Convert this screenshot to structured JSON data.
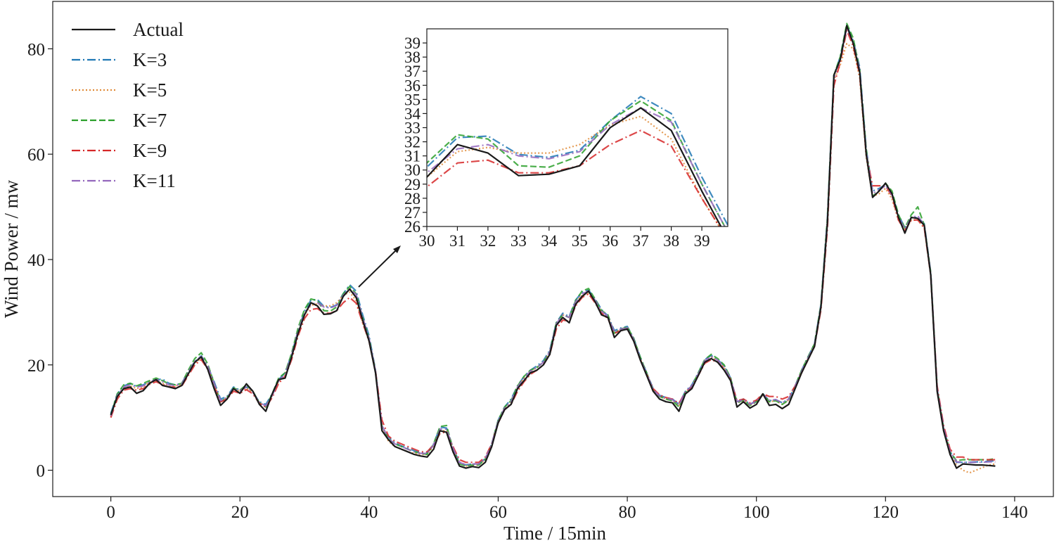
{
  "chart_data": {
    "type": "line",
    "title": "",
    "xlabel": "Time / 15min",
    "ylabel": "Wind Power / mw",
    "xlim": [
      -9,
      146
    ],
    "ylim": [
      -5,
      89
    ],
    "xticks": [
      0,
      20,
      40,
      60,
      80,
      100,
      120,
      140
    ],
    "yticks": [
      0,
      20,
      40,
      60,
      80
    ],
    "grid": false,
    "legend_position": "top-left",
    "colors": {
      "axis": "#1a1a1a",
      "arrow": "#1a1a1a"
    },
    "series": [
      {
        "name": "Actual",
        "color": "#1a1a1a",
        "dash": "solid",
        "values": [
          10.5,
          14,
          15.5,
          15.8,
          14.6,
          15.1,
          16.5,
          17.2,
          16.1,
          15.8,
          15.5,
          16.1,
          18.3,
          20.5,
          21.5,
          19.2,
          15.5,
          12.3,
          13.5,
          15.5,
          14.6,
          16.4,
          15,
          12.5,
          11.2,
          14.5,
          17.2,
          17.5,
          21.5,
          26,
          29.5,
          31.8,
          31.2,
          29.6,
          29.7,
          30.3,
          33,
          34.4,
          32.8,
          28.5,
          24.5,
          18.5,
          7.5,
          5.8,
          4.5,
          4,
          3.5,
          3,
          2.7,
          2.5,
          4,
          7.5,
          7.2,
          3.5,
          0.8,
          0.4,
          0.7,
          0.5,
          1.5,
          4.5,
          9,
          11.5,
          12.5,
          15.5,
          17,
          18.5,
          19,
          20,
          22,
          27.5,
          29,
          28,
          31.5,
          33,
          34,
          32,
          29.5,
          29,
          25.2,
          26.5,
          26.8,
          24.5,
          21,
          18,
          15,
          13.5,
          13,
          12.8,
          11.2,
          14.5,
          15.5,
          18,
          20.5,
          21.2,
          20.5,
          19,
          17,
          12,
          13,
          11.8,
          12.5,
          14.5,
          12.3,
          12.5,
          11.7,
          12.5,
          15.5,
          18.5,
          21,
          23.5,
          31,
          47,
          75,
          78,
          84.4,
          81,
          75.5,
          60,
          51.8,
          53,
          54.5,
          52.5,
          48,
          45,
          48,
          47.8,
          46.5,
          37,
          15,
          7.5,
          3,
          0.4,
          1.2,
          1.1,
          1,
          1,
          0.9,
          0.8
        ]
      },
      {
        "name": "K=3",
        "color": "#1f77b4",
        "dash": "dashdot",
        "values": [
          10.8,
          14.5,
          16,
          16.5,
          15.9,
          16.2,
          16.8,
          17.2,
          17.3,
          16.5,
          16.2,
          16.5,
          18.8,
          20.6,
          21.7,
          19.8,
          16.8,
          13.5,
          14,
          15.8,
          15.2,
          15.8,
          14.8,
          13,
          12.5,
          14.5,
          17.2,
          18.5,
          22,
          26.5,
          30.2,
          32.3,
          32.4,
          31.1,
          30.9,
          31.4,
          33.5,
          35.2,
          34,
          29.5,
          25.5,
          19,
          8.2,
          6.3,
          5.2,
          4.6,
          4.2,
          3.7,
          3.3,
          3.3,
          5,
          8.2,
          8,
          4.2,
          1.5,
          1,
          1.2,
          1.2,
          2.2,
          5,
          9.5,
          12,
          13.5,
          16,
          17.8,
          19,
          19.8,
          20.8,
          22.8,
          28,
          29.8,
          29.2,
          32.3,
          33.8,
          34.2,
          32.5,
          30.5,
          29.3,
          26.5,
          27,
          27.3,
          25,
          21.5,
          18.5,
          15.5,
          14.2,
          13.8,
          13.5,
          12.5,
          15,
          16.2,
          18.5,
          21,
          21.8,
          21,
          19.8,
          17.5,
          13,
          13.5,
          12.5,
          13.2,
          14.5,
          13.2,
          13.4,
          12.8,
          13.5,
          16,
          19,
          21.5,
          24,
          31.5,
          48,
          75,
          78.5,
          84.5,
          81.5,
          76.5,
          61,
          53,
          53.5,
          54.2,
          52.5,
          48.5,
          46,
          48,
          48,
          46.8,
          37.5,
          15.5,
          8,
          3.5,
          1.5,
          1.5,
          1.5,
          1.6,
          1.6,
          1.7,
          1.8
        ]
      },
      {
        "name": "K=5",
        "color": "#e08c3a",
        "dash": "dotted",
        "values": [
          10.2,
          14,
          15.5,
          16,
          15.5,
          15.8,
          16.8,
          17,
          16.5,
          16,
          16,
          16.3,
          18.5,
          20.4,
          21.2,
          19.5,
          16.2,
          13,
          13.8,
          15.4,
          15,
          15.6,
          14.8,
          12.8,
          12,
          14.2,
          16.8,
          18,
          21.5,
          26,
          29.5,
          31.3,
          31.6,
          31.2,
          31.2,
          31.8,
          33.2,
          33.8,
          32.2,
          28,
          24.5,
          18.5,
          8.5,
          5.5,
          4.5,
          4,
          3.5,
          3.2,
          3,
          3,
          4.6,
          7.5,
          7.5,
          4,
          1.2,
          0.8,
          1,
          1,
          2,
          4.8,
          9.2,
          11.8,
          13,
          15.8,
          17.5,
          18.8,
          19.5,
          20.5,
          22.5,
          27.5,
          29.5,
          29,
          32,
          33.2,
          33.5,
          32,
          30,
          29,
          26,
          26.8,
          27,
          24.8,
          21.2,
          18.2,
          15.2,
          14,
          13.5,
          13.2,
          12.2,
          14.8,
          16,
          18.2,
          20.8,
          21.5,
          20.8,
          19.5,
          17.2,
          12.8,
          13.2,
          12.3,
          13,
          14.3,
          13,
          13.2,
          12.5,
          13.3,
          15.8,
          18.8,
          21.2,
          23.8,
          31,
          47.5,
          74,
          77,
          81,
          80,
          74.5,
          59.5,
          52,
          52.5,
          53.5,
          51.5,
          47.5,
          45.5,
          47.5,
          47.5,
          46,
          37,
          15,
          7.5,
          3,
          1,
          0,
          -0.5,
          0,
          0.5,
          1,
          1.2
        ]
      },
      {
        "name": "K=7",
        "color": "#2ca02c",
        "dash": "dashed",
        "values": [
          10.5,
          14.5,
          16.2,
          16.5,
          16,
          16.5,
          17,
          17.5,
          17,
          16.4,
          16.2,
          16.5,
          19,
          21.2,
          22.3,
          20.2,
          16.5,
          13,
          13.8,
          15.6,
          15.2,
          16.2,
          15,
          12.8,
          12,
          14.5,
          17.5,
          18.5,
          22.2,
          27,
          30.5,
          32.5,
          32.2,
          30.3,
          30.2,
          31,
          33.5,
          34.9,
          33.5,
          29,
          25,
          18.8,
          8,
          6,
          5,
          4.5,
          4,
          3.5,
          3.2,
          3,
          5,
          8.3,
          8.5,
          4,
          1.2,
          0.8,
          1,
          1,
          2,
          5,
          9.5,
          12,
          13.2,
          16,
          17.8,
          19,
          19.5,
          20.5,
          22.5,
          28,
          29.5,
          29,
          32.2,
          34,
          34.5,
          32.5,
          30.3,
          29.5,
          26,
          26.8,
          27.2,
          25,
          21.5,
          18.5,
          15.2,
          14,
          13.5,
          13.2,
          12,
          14.8,
          16,
          18.5,
          21,
          22,
          21.2,
          20,
          17.5,
          12.8,
          13.3,
          12.3,
          13,
          14.5,
          13,
          13.2,
          12.5,
          13.3,
          16,
          19,
          21.5,
          24,
          31.5,
          48,
          75,
          78.5,
          84.8,
          82,
          76,
          61,
          52,
          53,
          54.5,
          53,
          48.5,
          46,
          48.5,
          50,
          46.5,
          37.5,
          15.5,
          8,
          3.5,
          1.8,
          2,
          2,
          2,
          2,
          2,
          2.2
        ]
      },
      {
        "name": "K=9",
        "color": "#d62728",
        "dash": "dashdot",
        "values": [
          10,
          13.5,
          15.2,
          15.5,
          15.2,
          15.5,
          16.3,
          16.8,
          16.3,
          15.8,
          15.8,
          16,
          18,
          20,
          21,
          19.2,
          16,
          13,
          13.5,
          15,
          14.6,
          15.3,
          14.5,
          12.7,
          12,
          13.8,
          16.5,
          17.8,
          21,
          25.5,
          28.8,
          30.5,
          30.7,
          29.8,
          29.8,
          30.3,
          31.8,
          32.8,
          31.7,
          28,
          24.5,
          18.8,
          9.5,
          6.5,
          5.5,
          5,
          4.5,
          4,
          3.5,
          3.5,
          4.8,
          7,
          7.3,
          4.5,
          2,
          1.5,
          1.5,
          1.5,
          2.5,
          5,
          9,
          11.5,
          12.5,
          15,
          16.8,
          18.2,
          19,
          20,
          22,
          26.8,
          28.5,
          28.3,
          31.2,
          32.8,
          33.5,
          31.8,
          29.8,
          28.8,
          26,
          26.5,
          26.8,
          24.5,
          21,
          18.2,
          15.5,
          14.3,
          13.8,
          13.5,
          12.7,
          14.8,
          15.8,
          18,
          20.3,
          21,
          20.5,
          19.2,
          17.2,
          13.2,
          13.5,
          12.8,
          13.3,
          14.5,
          14,
          14,
          13.5,
          14,
          16,
          18.5,
          21,
          23.5,
          30.5,
          46,
          73,
          77.5,
          83.5,
          80.5,
          75,
          60,
          54,
          54,
          54,
          52,
          47.5,
          45.5,
          47.5,
          47.5,
          46,
          37,
          16,
          8.5,
          4,
          2.5,
          2.5,
          2,
          2,
          2,
          2,
          2
        ]
      },
      {
        "name": "K=11",
        "color": "#9467bd",
        "dash": "dashdot",
        "values": [
          10.3,
          14.2,
          15.8,
          16.2,
          15.8,
          16,
          16.7,
          17.2,
          16.8,
          16.2,
          16.1,
          16.4,
          18.6,
          20.7,
          21.6,
          19.8,
          16.5,
          13.2,
          13.8,
          15.5,
          15.1,
          15.8,
          14.8,
          12.9,
          12.2,
          14.2,
          17,
          18.2,
          21.8,
          26.5,
          29.8,
          31.5,
          31.8,
          31,
          30.8,
          31.3,
          33.2,
          34.4,
          33.4,
          29,
          25,
          18.8,
          8.5,
          6,
          5,
          4.5,
          4,
          3.5,
          3.2,
          3.2,
          4.8,
          7.8,
          7.8,
          4.2,
          1.5,
          1,
          1.2,
          1.2,
          2.2,
          5,
          9.3,
          11.8,
          13,
          15.8,
          17.5,
          18.8,
          19.5,
          20.5,
          22.5,
          27.8,
          29.5,
          29,
          32,
          33.5,
          34,
          32.3,
          30.2,
          29.2,
          26.2,
          26.8,
          27,
          24.8,
          21.2,
          18.3,
          15.3,
          14.1,
          13.7,
          13.4,
          12.4,
          14.9,
          16,
          18.3,
          20.8,
          21.6,
          20.9,
          19.6,
          17.3,
          13,
          13.4,
          12.5,
          13.1,
          14.4,
          13.3,
          13.4,
          12.8,
          13.5,
          15.9,
          18.8,
          21.3,
          23.8,
          31.2,
          47.5,
          74.5,
          78,
          84,
          81.2,
          76,
          60.5,
          52.5,
          53.2,
          54,
          52.3,
          48,
          45.8,
          48,
          48.3,
          46.5,
          37.3,
          15.5,
          8,
          3.5,
          1.6,
          1.5,
          1.5,
          1.5,
          1.5,
          1.6,
          1.6
        ]
      }
    ],
    "inset": {
      "xlim": [
        30,
        39.85
      ],
      "ylim": [
        26,
        40
      ],
      "xticks": [
        30,
        31,
        32,
        33,
        34,
        35,
        36,
        37,
        38,
        39
      ],
      "yticks": [
        26,
        27,
        28,
        29,
        30,
        31,
        32,
        33,
        34,
        35,
        36,
        37,
        38,
        39
      ]
    },
    "annotation": "arrow from main curve near t=37 to zoomed inset"
  }
}
